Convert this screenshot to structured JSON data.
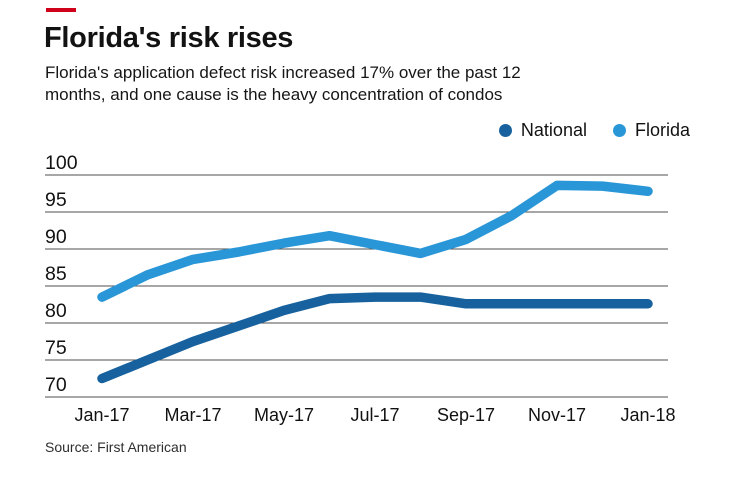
{
  "accent": {
    "color": "#d0021b"
  },
  "header": {
    "title": "Florida's risk rises",
    "subtitle_line1": "Florida's application defect risk increased 17% over the past 12",
    "subtitle_line2": "months, and one cause is the heavy concentration of condos"
  },
  "source": {
    "text": "Source: First American"
  },
  "chart_data": {
    "type": "line",
    "title": "Florida's risk rises",
    "x": [
      "Jan-17",
      "Feb-17",
      "Mar-17",
      "Apr-17",
      "May-17",
      "Jun-17",
      "Jul-17",
      "Aug-17",
      "Sep-17",
      "Oct-17",
      "Nov-17",
      "Dec-17",
      "Jan-18"
    ],
    "x_tick_labels": [
      "Jan-17",
      "Mar-17",
      "May-17",
      "Jul-17",
      "Sep-17",
      "Nov-17",
      "Jan-18"
    ],
    "series": [
      {
        "name": "National",
        "color": "#17629e",
        "values": [
          72.5,
          75.0,
          77.5,
          79.6,
          81.7,
          83.3,
          83.5,
          83.5,
          82.6,
          82.6,
          82.6,
          82.6,
          82.6
        ]
      },
      {
        "name": "Florida",
        "color": "#2996d8",
        "values": [
          83.5,
          86.5,
          88.6,
          89.6,
          90.8,
          91.8,
          90.6,
          89.4,
          91.3,
          94.5,
          98.6,
          98.5,
          97.8
        ]
      }
    ],
    "ylim": [
      70,
      100
    ],
    "y_ticks": [
      70,
      75,
      80,
      85,
      90,
      95,
      100
    ],
    "grid": true,
    "gridline_color": "#4f4f4f",
    "legend_position": "top-right"
  }
}
